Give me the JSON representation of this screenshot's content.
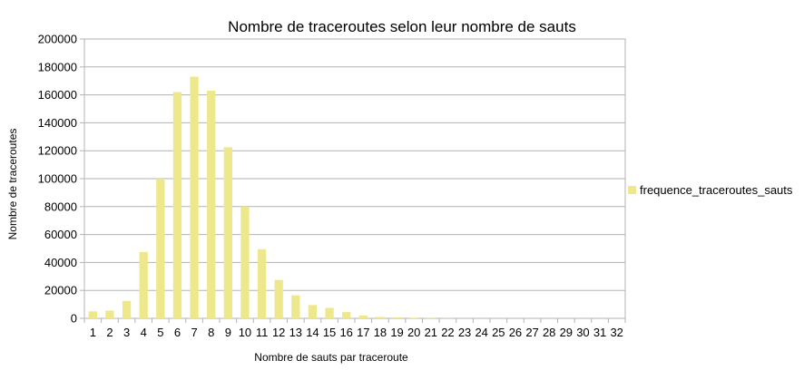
{
  "chart_data": {
    "type": "bar",
    "title": "Nombre de traceroutes selon leur nombre de sauts",
    "xlabel": "Nombre de sauts par traceroute",
    "ylabel": "Nombre de traceroutes",
    "categories": [
      "1",
      "2",
      "3",
      "4",
      "5",
      "6",
      "7",
      "8",
      "9",
      "10",
      "11",
      "12",
      "13",
      "14",
      "15",
      "16",
      "17",
      "18",
      "19",
      "20",
      "21",
      "22",
      "23",
      "24",
      "25",
      "26",
      "27",
      "28",
      "29",
      "30",
      "31",
      "32"
    ],
    "series": [
      {
        "name": "frequence_traceroutes_sauts",
        "color": "#eee88c",
        "values": [
          5000,
          5500,
          12500,
          47500,
          100000,
          162000,
          173000,
          163000,
          122500,
          80000,
          49500,
          27500,
          16500,
          9500,
          7500,
          4500,
          2000,
          1000,
          700,
          400,
          200,
          100,
          50,
          0,
          0,
          0,
          0,
          0,
          0,
          0,
          0,
          0
        ]
      }
    ],
    "ylim": [
      0,
      200000
    ],
    "yticks": [
      0,
      20000,
      40000,
      60000,
      80000,
      100000,
      120000,
      140000,
      160000,
      180000,
      200000
    ],
    "grid": true,
    "legend": "right"
  }
}
